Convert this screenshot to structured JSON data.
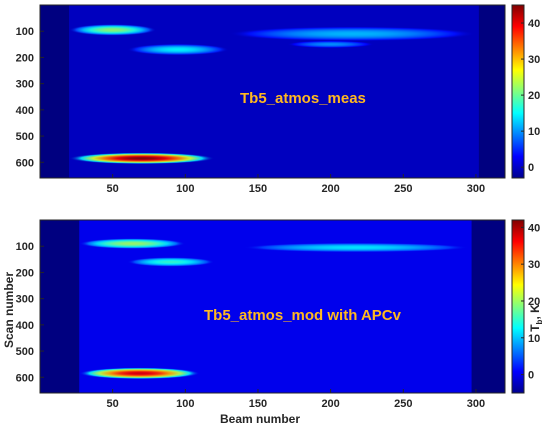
{
  "chart_data": [
    {
      "type": "heatmap",
      "annotation": "Tb5_atmos_meas",
      "xlabel": "",
      "ylabel": "",
      "xlim": [
        0,
        320
      ],
      "ylim": [
        660,
        0
      ],
      "x_ticks": [
        50,
        100,
        150,
        200,
        250,
        300
      ],
      "y_ticks": [
        100,
        200,
        300,
        400,
        500,
        600
      ],
      "valid_x_range": [
        20,
        302
      ],
      "background_value": 0,
      "colorbar": {
        "label": "",
        "range": [
          -3,
          45
        ],
        "ticks": [
          0,
          10,
          20,
          30,
          40
        ]
      },
      "features": [
        {
          "x_range": [
            20,
            80
          ],
          "y_center": 95,
          "y_width": 22,
          "peak_value": 22
        },
        {
          "x_range": [
            60,
            130
          ],
          "y_center": 170,
          "y_width": 22,
          "peak_value": 15
        },
        {
          "x_range": [
            130,
            300
          ],
          "y_center": 110,
          "y_width": 28,
          "peak_value": 12
        },
        {
          "x_range": [
            170,
            230
          ],
          "y_center": 150,
          "y_width": 14,
          "peak_value": 10
        },
        {
          "x_range": [
            20,
            120
          ],
          "y_center": 585,
          "y_width": 22,
          "peak_value": 45
        }
      ]
    },
    {
      "type": "heatmap",
      "annotation": "Tb5_atmos_mod with APCv",
      "xlabel": "Beam number",
      "ylabel": "Scan number",
      "xlim": [
        0,
        320
      ],
      "ylim": [
        660,
        0
      ],
      "x_ticks": [
        50,
        100,
        150,
        200,
        250,
        300
      ],
      "y_ticks": [
        100,
        200,
        300,
        400,
        500,
        600
      ],
      "valid_x_range": [
        27,
        297
      ],
      "background_value": 0,
      "colorbar": {
        "label": "T",
        "label_subscript": "b",
        "label_suffix": ", K",
        "range": [
          -5,
          42
        ],
        "ticks": [
          0,
          10,
          20,
          30,
          40
        ]
      },
      "features": [
        {
          "x_range": [
            27,
            100
          ],
          "y_center": 90,
          "y_width": 20,
          "peak_value": 20
        },
        {
          "x_range": [
            60,
            120
          ],
          "y_center": 160,
          "y_width": 18,
          "peak_value": 15
        },
        {
          "x_range": [
            140,
            295
          ],
          "y_center": 105,
          "y_width": 18,
          "peak_value": 12
        },
        {
          "x_range": [
            27,
            110
          ],
          "y_center": 585,
          "y_width": 22,
          "peak_value": 38
        }
      ]
    }
  ]
}
